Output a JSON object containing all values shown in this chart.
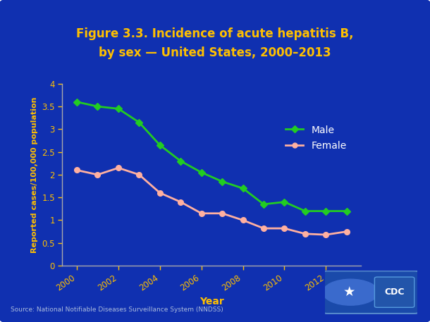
{
  "title_line1": "Figure 3.3. Incidence of acute hepatitis B,",
  "title_line2": "by sex — United States, 2000–2013",
  "xlabel": "Year",
  "ylabel": "Reported cases/100,000 population",
  "years": [
    2000,
    2001,
    2002,
    2003,
    2004,
    2005,
    2006,
    2007,
    2008,
    2009,
    2010,
    2011,
    2012,
    2013
  ],
  "male": [
    3.6,
    3.5,
    3.45,
    3.15,
    2.65,
    2.3,
    2.05,
    1.85,
    1.7,
    1.35,
    1.4,
    1.2,
    1.2,
    1.2
  ],
  "female": [
    2.1,
    2.0,
    2.15,
    2.0,
    1.6,
    1.4,
    1.15,
    1.15,
    1.0,
    0.82,
    0.82,
    0.7,
    0.68,
    0.75
  ],
  "male_color": "#22cc22",
  "female_color": "#ffb0a0",
  "background_outer": "#0a1f8f",
  "background_inner": "#1030b0",
  "title_color": "#ffc000",
  "axis_label_color": "#ffc000",
  "tick_label_color": "#ffc000",
  "axis_line_color": "#aaaaaa",
  "legend_text_color": "#ffffff",
  "source_text": "Source: National Notifiable Diseases Surveillance System (NNDSS)",
  "source_color": "#aabbdd",
  "ylim": [
    0,
    4
  ],
  "yticks": [
    0,
    0.5,
    1,
    1.5,
    2,
    2.5,
    3,
    3.5,
    4
  ],
  "xticks": [
    2000,
    2002,
    2004,
    2006,
    2008,
    2010,
    2012
  ],
  "xlim": [
    1999.3,
    2013.7
  ]
}
